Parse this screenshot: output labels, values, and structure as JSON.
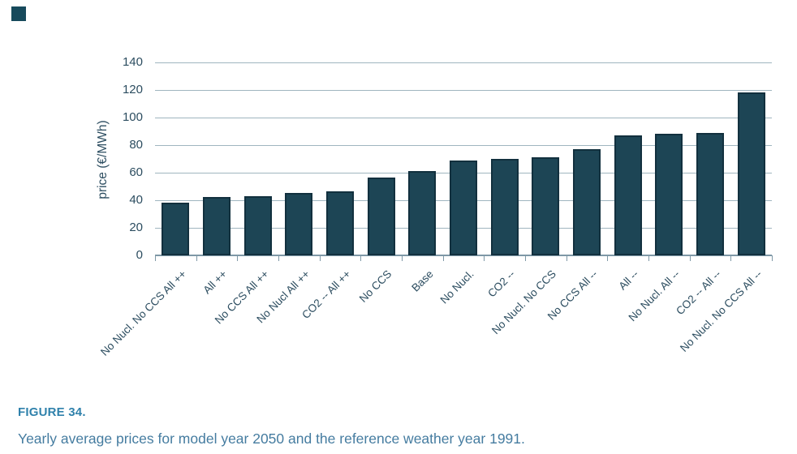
{
  "page": {
    "background": "#ffffff",
    "corner_square_color": "#174A5C"
  },
  "figure": {
    "label": "FIGURE 34.",
    "label_color": "#2F81AB",
    "caption": "Yearly average prices for model year 2050 and the reference weather year 1991.",
    "caption_color": "#457CA0"
  },
  "chart_data": {
    "type": "bar",
    "title": "",
    "xlabel": "",
    "ylabel": "price (€/MWh)",
    "ylim": [
      0,
      140
    ],
    "yticks": [
      0,
      20,
      40,
      60,
      80,
      100,
      120,
      140
    ],
    "grid": true,
    "legend": false,
    "categories": [
      "No Nucl. No CCS All ++",
      "All ++",
      "No CCS All ++",
      "No Nucl All ++",
      "CO2 -- All ++",
      "No CCS",
      "Base",
      "No Nucl.",
      "CO2 --",
      "No Nucl. No CCS",
      "No CCS All --",
      "All --",
      "No Nucl. All --",
      "CO2 -- All --",
      "No Nucl. No CCS All --"
    ],
    "values": [
      38,
      42.5,
      43,
      45.5,
      46.5,
      56.5,
      61,
      69,
      70,
      71,
      77,
      87,
      88,
      89,
      118.5
    ],
    "bar_color": "#1D4555",
    "bar_border_color": "#12303E",
    "gridline_color": "#9FB5BF",
    "axis_color": "#7E98A6",
    "tick_label_color": "#2C4D60"
  }
}
